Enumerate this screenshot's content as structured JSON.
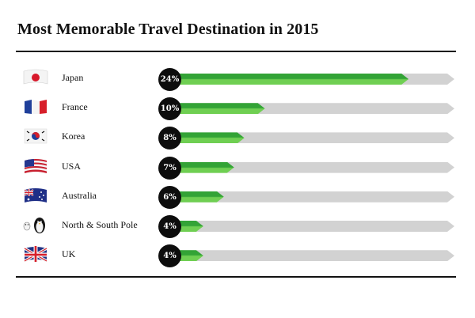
{
  "title": "Most Memorable Travel Destination in 2015",
  "colors": {
    "bar_fill": "#3aa83b",
    "bar_track": "#d2d2d2",
    "badge": "#0d0d0d"
  },
  "chart_data": {
    "type": "bar",
    "orientation": "horizontal",
    "title": "Most Memorable Travel Destination in 2015",
    "categories": [
      "Japan",
      "France",
      "Korea",
      "USA",
      "Australia",
      "North & South Pole",
      "UK"
    ],
    "values": [
      24,
      10,
      8,
      7,
      6,
      4,
      4
    ],
    "value_labels": [
      "24%",
      "10%",
      "8%",
      "7%",
      "6%",
      "4%",
      "4%"
    ],
    "flag_icons": [
      "japan-flag-icon",
      "france-flag-icon",
      "korea-flag-icon",
      "usa-flag-icon",
      "australia-flag-icon",
      "penguin-icon",
      "uk-flag-icon"
    ],
    "xlim": [
      0,
      27
    ],
    "grid": false
  }
}
